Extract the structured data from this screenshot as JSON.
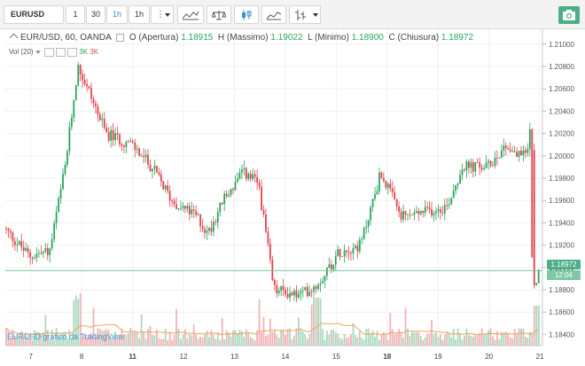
{
  "toolbar": {
    "symbol": "EURUSD",
    "intervals": [
      "1",
      "30",
      "1h",
      "1h"
    ],
    "active_interval_index": 2
  },
  "legend": {
    "title": "EUR/USD, 60, OANDA",
    "open_label": "O (Apertura)",
    "open": "1.18915",
    "high_label": "H (Massimo)",
    "high": "1.19022",
    "low_label": "L (Minimo)",
    "low": "1.18900",
    "close_label": "C (Chiusura)",
    "close": "1.18972",
    "volume_label": "Vol (20)",
    "volume_values": [
      "3K",
      "3K"
    ]
  },
  "watermark": "EURUSD grafico da TradingView",
  "price_tags": {
    "last_price": "1.18972",
    "countdown": "12:04"
  },
  "colors": {
    "up": "#26a65b",
    "down": "#e0434d",
    "ma": "#f0a35e",
    "accent": "#3c8fd6",
    "snapshot": "#4caf85"
  },
  "chart_data": {
    "type": "candlestick",
    "symbol": "EUR/USD",
    "y_ticks": [
      "1.21000",
      "1.20800",
      "1.20600",
      "1.20400",
      "1.20200",
      "1.20000",
      "1.19800",
      "1.19600",
      "1.19400",
      "1.19200",
      "1.19000",
      "1.18800",
      "1.18600",
      "1.18400"
    ],
    "ylim": [
      1.183,
      1.2107
    ],
    "x_ticks": [
      {
        "label": "7",
        "bold": false,
        "day": 0.5
      },
      {
        "label": "8",
        "bold": false,
        "day": 1.5
      },
      {
        "label": "11",
        "bold": true,
        "day": 2.5
      },
      {
        "label": "12",
        "bold": false,
        "day": 3.5
      },
      {
        "label": "13",
        "bold": false,
        "day": 4.5
      },
      {
        "label": "14",
        "bold": false,
        "day": 5.5
      },
      {
        "label": "15",
        "bold": false,
        "day": 6.5
      },
      {
        "label": "18",
        "bold": true,
        "day": 7.5
      },
      {
        "label": "19",
        "bold": false,
        "day": 8.5
      },
      {
        "label": "20",
        "bold": false,
        "day": 9.5
      },
      {
        "label": "21",
        "bold": false,
        "day": 10.5
      }
    ],
    "path_anchors": [
      [
        0,
        1.1935
      ],
      [
        0.5,
        1.191
      ],
      [
        0.9,
        1.1915
      ],
      [
        1.2,
        1.199
      ],
      [
        1.45,
        1.208
      ],
      [
        1.65,
        1.206
      ],
      [
        2.0,
        1.202
      ],
      [
        2.5,
        1.201
      ],
      [
        2.9,
        1.199
      ],
      [
        3.3,
        1.196
      ],
      [
        3.8,
        1.1945
      ],
      [
        4.0,
        1.193
      ],
      [
        4.3,
        1.196
      ],
      [
        4.7,
        1.1985
      ],
      [
        5.0,
        1.1975
      ],
      [
        5.3,
        1.188
      ],
      [
        5.8,
        1.1875
      ],
      [
        6.15,
        1.1885
      ],
      [
        6.6,
        1.1915
      ],
      [
        7.0,
        1.192
      ],
      [
        7.4,
        1.1985
      ],
      [
        7.8,
        1.1945
      ],
      [
        8.3,
        1.195
      ],
      [
        8.7,
        1.1955
      ],
      [
        9.0,
        1.199
      ],
      [
        9.5,
        1.199
      ],
      [
        9.85,
        1.201
      ],
      [
        10.1,
        1.2
      ],
      [
        10.3,
        1.2005
      ],
      [
        10.33,
        1.203
      ],
      [
        10.38,
        1.188
      ],
      [
        10.5,
        1.1897
      ]
    ],
    "volume_ma": true
  }
}
